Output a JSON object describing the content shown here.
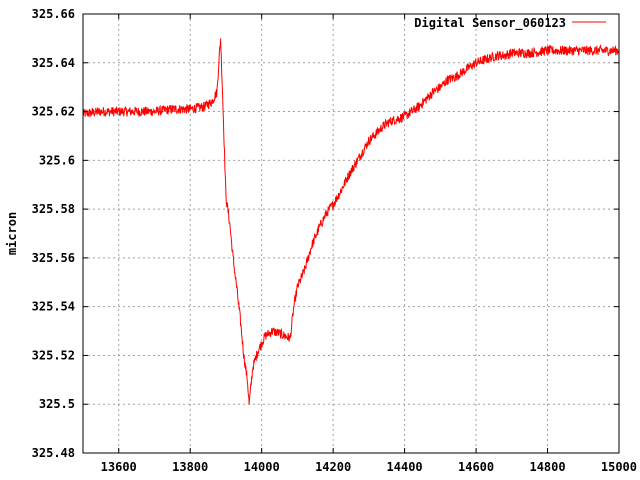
{
  "chart_data": {
    "type": "line",
    "title": "",
    "xlabel": "",
    "ylabel": "micron",
    "xlim": [
      13500,
      15000
    ],
    "ylim": [
      325.48,
      325.66
    ],
    "x_ticks": [
      13600,
      13800,
      14000,
      14200,
      14400,
      14600,
      14800,
      15000
    ],
    "y_ticks": [
      325.48,
      325.5,
      325.52,
      325.54,
      325.56,
      325.58,
      325.6,
      325.62,
      325.64,
      325.66
    ],
    "x_tick_labels": [
      "13600",
      "13800",
      "14000",
      "14200",
      "14400",
      "14600",
      "14800",
      "15000"
    ],
    "y_tick_labels": [
      "325.48",
      "325.5",
      "325.52",
      "325.54",
      "325.56",
      "325.58",
      "325.6",
      "325.62",
      "325.64",
      "325.66"
    ],
    "grid": true,
    "legend_position": "top-right",
    "colors": {
      "series": "#ff0000",
      "grid": "#a0a0a0",
      "axes": "#000000"
    },
    "series": [
      {
        "name": "Digital Sensor_060123",
        "noise": 0.004,
        "x": [
          13500,
          13550,
          13600,
          13650,
          13700,
          13750,
          13800,
          13840,
          13860,
          13875,
          13880,
          13885,
          13890,
          13900,
          13910,
          13920,
          13930,
          13940,
          13950,
          13960,
          13965,
          13975,
          13990,
          14010,
          14030,
          14050,
          14080,
          14090,
          14100,
          14120,
          14140,
          14160,
          14180,
          14200,
          14220,
          14240,
          14260,
          14280,
          14300,
          14320,
          14340,
          14360,
          14380,
          14400,
          14420,
          14440,
          14460,
          14480,
          14500,
          14520,
          14540,
          14560,
          14580,
          14600,
          14620,
          14640,
          14660,
          14680,
          14700,
          14750,
          14800,
          14850,
          14900,
          14950,
          15000
        ],
        "y": [
          325.619,
          325.62,
          325.62,
          325.62,
          325.62,
          325.621,
          325.621,
          325.622,
          325.624,
          325.628,
          325.64,
          325.65,
          325.63,
          325.585,
          325.575,
          325.56,
          325.548,
          325.535,
          325.52,
          325.51,
          325.5,
          325.515,
          325.522,
          325.528,
          325.53,
          325.529,
          325.527,
          325.54,
          325.548,
          325.555,
          325.565,
          325.572,
          325.578,
          325.582,
          325.587,
          325.593,
          325.598,
          325.603,
          325.608,
          325.611,
          325.614,
          325.616,
          325.617,
          325.618,
          325.62,
          325.622,
          325.625,
          325.628,
          325.63,
          325.633,
          325.634,
          325.636,
          325.638,
          325.64,
          325.641,
          325.642,
          325.643,
          325.643,
          325.644,
          325.644,
          325.645,
          325.645,
          325.645,
          325.645,
          325.645
        ]
      }
    ]
  }
}
